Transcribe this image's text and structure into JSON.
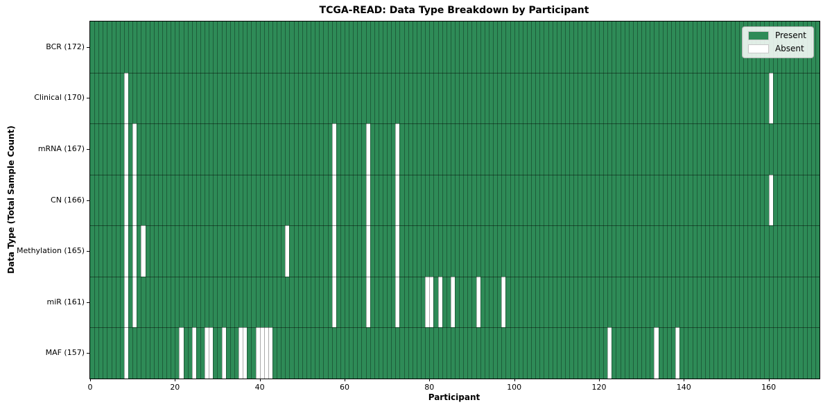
{
  "title": "TCGA-READ: Data Type Breakdown by Participant",
  "x_axis": {
    "label": "Participant",
    "ticks": [
      0,
      20,
      40,
      60,
      80,
      100,
      120,
      140,
      160
    ]
  },
  "y_axis": {
    "label": "Data Type (Total Sample Count)"
  },
  "legend": [
    {
      "label": "Present",
      "color": "#2e8b57"
    },
    {
      "label": "Absent",
      "color": "#ffffff"
    }
  ],
  "chart_data": {
    "type": "heatmap",
    "title": "TCGA-READ: Data Type Breakdown by Participant",
    "xlabel": "Participant",
    "ylabel": "Data Type (Total Sample Count)",
    "x_range": [
      0,
      172
    ],
    "n_participants": 172,
    "grid": true,
    "legend_position": "upper right",
    "colors": {
      "present": "#2e8b57",
      "absent": "#ffffff"
    },
    "rows": [
      {
        "label": "BCR (172)",
        "data_type": "BCR",
        "present_count": 172,
        "absent_participants": []
      },
      {
        "label": "Clinical (170)",
        "data_type": "Clinical",
        "present_count": 170,
        "absent_participants": [
          8,
          160
        ]
      },
      {
        "label": "mRNA (167)",
        "data_type": "mRNA",
        "present_count": 167,
        "absent_participants": [
          8,
          10,
          57,
          65,
          72
        ]
      },
      {
        "label": "CN (166)",
        "data_type": "CN",
        "present_count": 166,
        "absent_participants": [
          8,
          10,
          57,
          65,
          72,
          160
        ]
      },
      {
        "label": "Methylation (165)",
        "data_type": "Methylation",
        "present_count": 165,
        "absent_participants": [
          8,
          10,
          12,
          46,
          57,
          65,
          72
        ]
      },
      {
        "label": "miR (161)",
        "data_type": "miR",
        "present_count": 161,
        "absent_participants": [
          8,
          10,
          57,
          65,
          72,
          79,
          80,
          82,
          85,
          91,
          97
        ]
      },
      {
        "label": "MAF (157)",
        "data_type": "MAF",
        "present_count": 157,
        "absent_participants": [
          8,
          21,
          24,
          27,
          28,
          31,
          35,
          36,
          39,
          40,
          41,
          42,
          122,
          133,
          138
        ]
      }
    ]
  }
}
